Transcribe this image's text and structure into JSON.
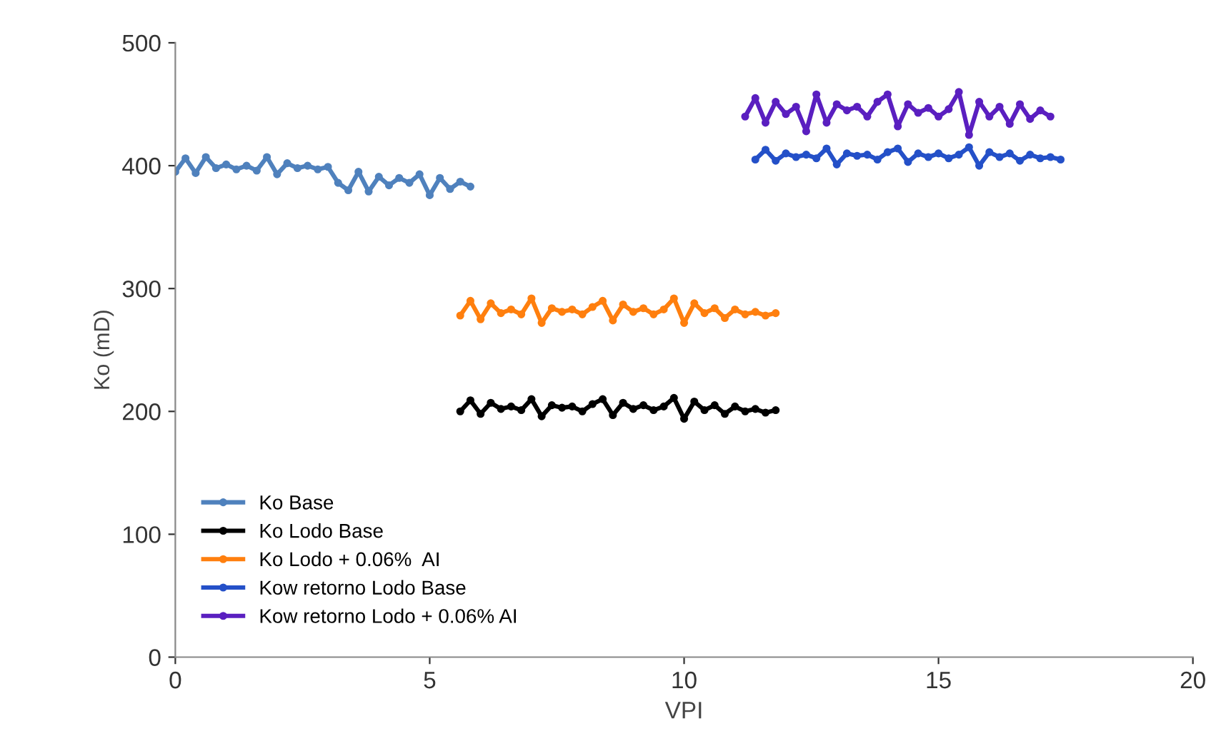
{
  "chart_data": {
    "type": "line",
    "xlabel": "VPI",
    "ylabel": "Ko (mD)",
    "xlim": [
      0,
      20
    ],
    "xticks": [
      0,
      5,
      10,
      15,
      20
    ],
    "ylim": [
      0,
      500
    ],
    "yticks": [
      0,
      100,
      200,
      300,
      400,
      500
    ],
    "grid": false,
    "legend": "bottom left",
    "marker": "circle",
    "line_style": "solid",
    "series": [
      {
        "name": "Ko Base",
        "color": "#4f81bd",
        "x": [
          0,
          0.2,
          0.4,
          0.6,
          0.8,
          1.0,
          1.2,
          1.4,
          1.6,
          1.8,
          2.0,
          2.2,
          2.4,
          2.6,
          2.8,
          3.0,
          3.2,
          3.4,
          3.6,
          3.8,
          4.0,
          4.2,
          4.4,
          4.6,
          4.8,
          5.0,
          5.2,
          5.4,
          5.6,
          5.8
        ],
        "values": [
          395,
          406,
          394,
          407,
          398,
          401,
          397,
          400,
          396,
          407,
          393,
          402,
          398,
          400,
          397,
          399,
          386,
          380,
          395,
          379,
          391,
          384,
          390,
          386,
          393,
          376,
          390,
          381,
          387,
          383
        ]
      },
      {
        "name": "Ko Lodo Base",
        "color": "#000000",
        "x": [
          5.6,
          5.8,
          6.0,
          6.2,
          6.4,
          6.6,
          6.8,
          7.0,
          7.2,
          7.4,
          7.6,
          7.8,
          8.0,
          8.2,
          8.4,
          8.6,
          8.8,
          9.0,
          9.2,
          9.4,
          9.6,
          9.8,
          10.0,
          10.2,
          10.4,
          10.6,
          10.8,
          11.0,
          11.2,
          11.4,
          11.6,
          11.8
        ],
        "values": [
          200,
          209,
          198,
          207,
          202,
          204,
          201,
          210,
          196,
          205,
          203,
          204,
          200,
          206,
          210,
          197,
          207,
          202,
          205,
          201,
          204,
          211,
          194,
          208,
          201,
          205,
          198,
          204,
          200,
          202,
          199,
          201
        ]
      },
      {
        "name": "Ko Lodo + 0.06%  AI",
        "color": "#ff7f0e",
        "x": [
          5.6,
          5.8,
          6.0,
          6.2,
          6.4,
          6.6,
          6.8,
          7.0,
          7.2,
          7.4,
          7.6,
          7.8,
          8.0,
          8.2,
          8.4,
          8.6,
          8.8,
          9.0,
          9.2,
          9.4,
          9.6,
          9.8,
          10.0,
          10.2,
          10.4,
          10.6,
          10.8,
          11.0,
          11.2,
          11.4,
          11.6,
          11.8
        ],
        "values": [
          278,
          290,
          275,
          288,
          280,
          283,
          279,
          292,
          272,
          284,
          281,
          283,
          279,
          285,
          290,
          274,
          287,
          281,
          284,
          279,
          283,
          292,
          272,
          288,
          280,
          284,
          276,
          283,
          279,
          281,
          278,
          280
        ]
      },
      {
        "name": "Kow retorno Lodo Base",
        "color": "#2450c8",
        "x": [
          11.4,
          11.6,
          11.8,
          12.0,
          12.2,
          12.4,
          12.6,
          12.8,
          13.0,
          13.2,
          13.4,
          13.6,
          13.8,
          14.0,
          14.2,
          14.4,
          14.6,
          14.8,
          15.0,
          15.2,
          15.4,
          15.6,
          15.8,
          16.0,
          16.2,
          16.4,
          16.6,
          16.8,
          17.0,
          17.2,
          17.4
        ],
        "values": [
          405,
          413,
          404,
          410,
          407,
          409,
          406,
          414,
          401,
          410,
          408,
          409,
          405,
          411,
          414,
          403,
          410,
          407,
          410,
          406,
          409,
          415,
          400,
          411,
          407,
          410,
          404,
          409,
          406,
          407,
          405
        ]
      },
      {
        "name": "Kow retorno Lodo + 0.06% AI",
        "color": "#5a1fc0",
        "x": [
          11.2,
          11.4,
          11.6,
          11.8,
          12.0,
          12.2,
          12.4,
          12.6,
          12.8,
          13.0,
          13.2,
          13.4,
          13.6,
          13.8,
          14.0,
          14.2,
          14.4,
          14.6,
          14.8,
          15.0,
          15.2,
          15.4,
          15.6,
          15.8,
          16.0,
          16.2,
          16.4,
          16.6,
          16.8,
          17.0,
          17.2
        ],
        "values": [
          440,
          455,
          435,
          452,
          442,
          448,
          428,
          458,
          435,
          450,
          445,
          448,
          440,
          452,
          458,
          432,
          450,
          443,
          447,
          440,
          446,
          460,
          425,
          452,
          440,
          448,
          434,
          450,
          438,
          445,
          440
        ]
      }
    ]
  }
}
